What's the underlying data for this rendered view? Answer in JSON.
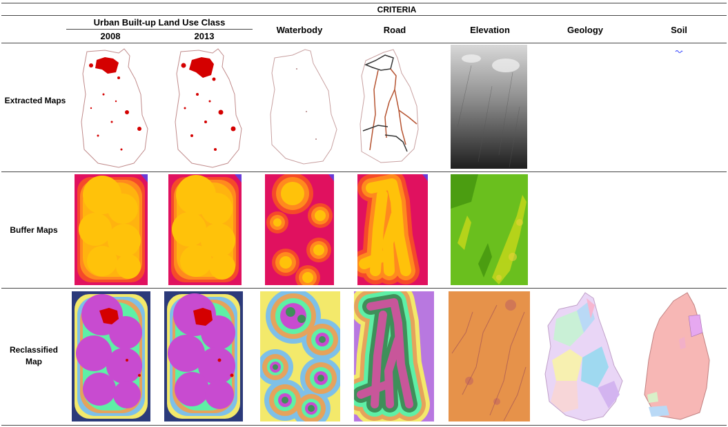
{
  "table": {
    "title": "CRITERIA",
    "group_header": "Urban Built-up Land Use Class",
    "years": [
      "2008",
      "2013"
    ],
    "columns": [
      "Waterbody",
      "Road",
      "Elevation",
      "Geology",
      "Soil"
    ],
    "rows": [
      {
        "label": "Extracted Maps"
      },
      {
        "label": "Buffer Maps"
      },
      {
        "label": "Reclassified Map"
      }
    ]
  },
  "colors": {
    "rule": "#444444",
    "built_up": "#d40000",
    "buffer_core": "#ffc20a",
    "buffer_edge": "#e0115f",
    "reclass_magenta": "#c84bd0",
    "elevation_dark": "#3a3a3a",
    "elevation_light": "#f2f2f2",
    "soil_pink": "#f7b7b5",
    "geology_pastel": "#d9c7f2"
  }
}
